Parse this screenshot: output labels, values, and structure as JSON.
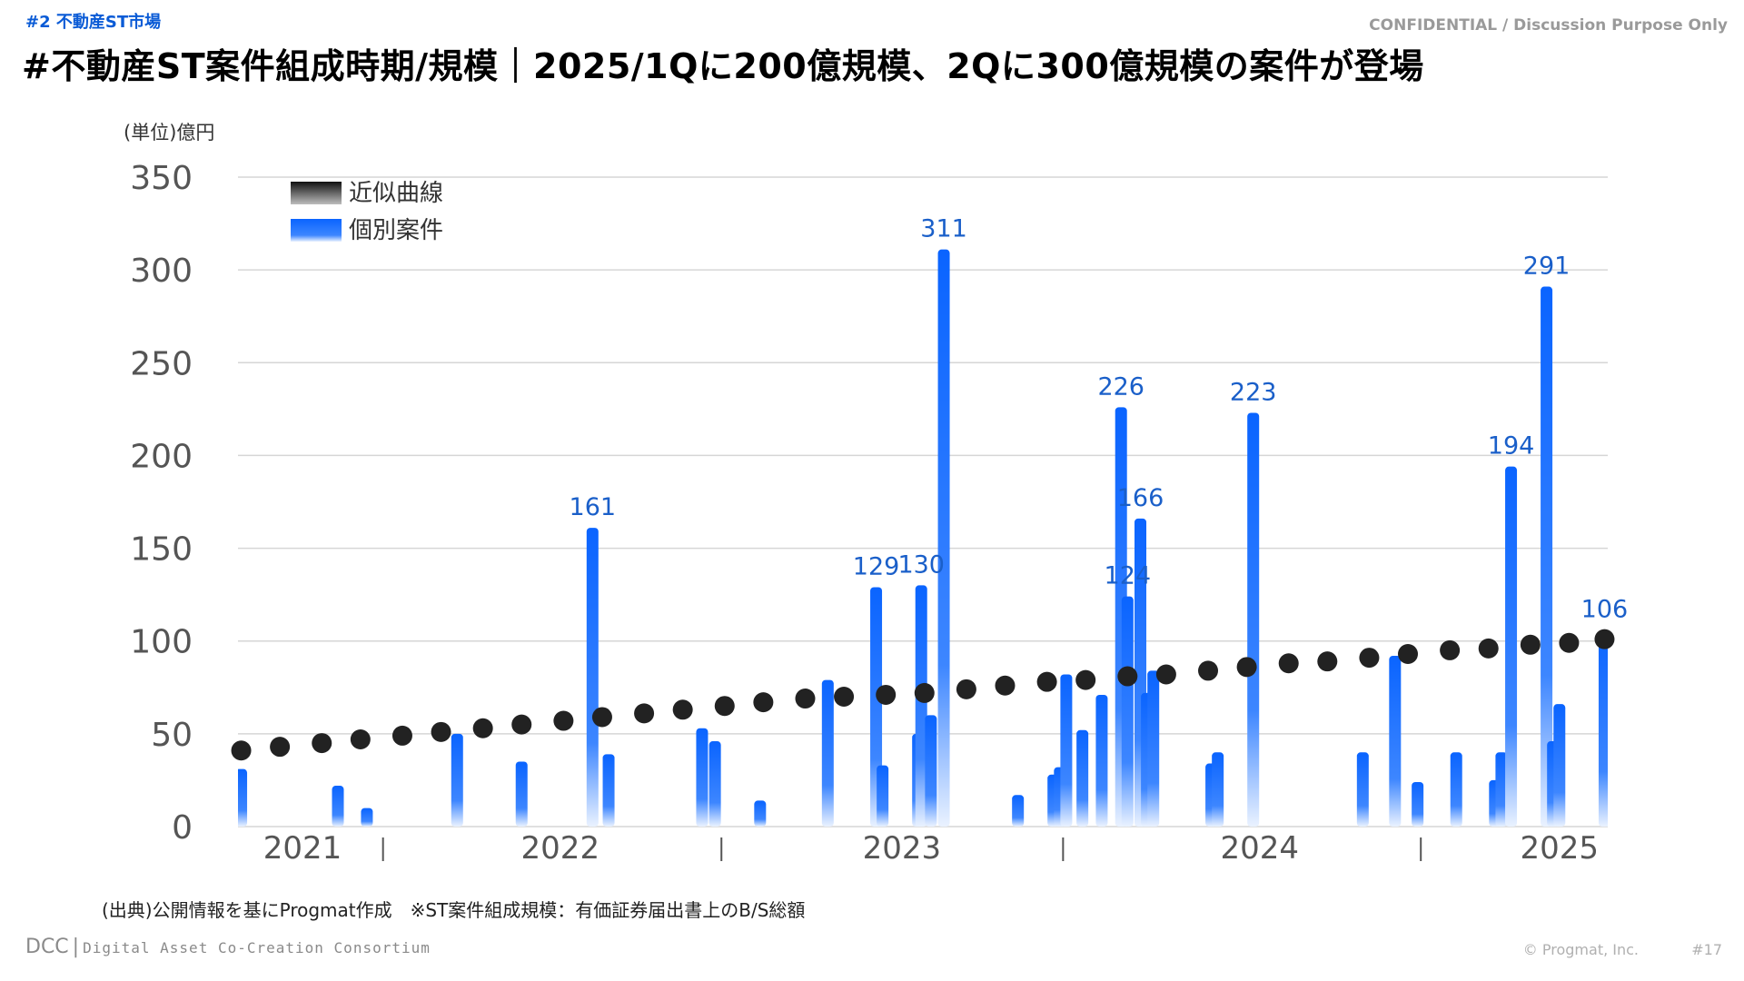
{
  "header": {
    "section_tag": "#2  不動産ST市場",
    "confidential": "CONFIDENTIAL / Discussion Purpose Only",
    "title": "#不動産ST案件組成時期/規模｜2025/1Qに200億規模、2Qに300億規模の案件が登場"
  },
  "footer": {
    "source_note": "(出典)公開情報を基にProgmat作成　※ST案件組成規模：有価証券届出書上のB/S総額",
    "logo_text": "DCC",
    "logo_separator": "|",
    "org_name": "Digital Asset Co-Creation Consortium",
    "copyright": "© Progmat, Inc.",
    "page_number": "#17"
  },
  "colors": {
    "bar": "#0a64ff",
    "bar_fade": "#eaf2ff",
    "dot": "#222222",
    "label": "#1a5fc9",
    "grid": "#d6d6d6",
    "axis_text": "#555555"
  },
  "chart_data": {
    "type": "bar",
    "unit_label": "(単位)億円",
    "ylim": [
      0,
      350
    ],
    "yticks": [
      0,
      50,
      100,
      150,
      200,
      250,
      300,
      350
    ],
    "grid": true,
    "legend_position": "top-left",
    "legend": [
      {
        "name": "近似曲線",
        "style": "dot"
      },
      {
        "name": "個別案件",
        "style": "bar"
      }
    ],
    "x_range": [
      2021.05,
      2025.3
    ],
    "year_labels": [
      {
        "label": "2021",
        "x": 2021.25
      },
      {
        "label": "2022",
        "x": 2022.05
      },
      {
        "label": "2023",
        "x": 2023.11
      },
      {
        "label": "2024",
        "x": 2024.22
      },
      {
        "label": "2025",
        "x": 2025.15
      }
    ],
    "year_separators": [
      2021.5,
      2022.55,
      2023.61,
      2024.72
    ],
    "series": [
      {
        "name": "個別案件",
        "type": "bar",
        "points": [
          {
            "x": 2021.06,
            "y": 31
          },
          {
            "x": 2021.36,
            "y": 22
          },
          {
            "x": 2021.45,
            "y": 10
          },
          {
            "x": 2021.73,
            "y": 50
          },
          {
            "x": 2021.93,
            "y": 35
          },
          {
            "x": 2022.15,
            "y": 161,
            "label": "161"
          },
          {
            "x": 2022.2,
            "y": 39
          },
          {
            "x": 2022.49,
            "y": 53
          },
          {
            "x": 2022.53,
            "y": 46
          },
          {
            "x": 2022.67,
            "y": 14
          },
          {
            "x": 2022.88,
            "y": 79
          },
          {
            "x": 2023.03,
            "y": 129,
            "label": "129"
          },
          {
            "x": 2023.05,
            "y": 33
          },
          {
            "x": 2023.16,
            "y": 50
          },
          {
            "x": 2023.17,
            "y": 130,
            "label": "130"
          },
          {
            "x": 2023.2,
            "y": 60
          },
          {
            "x": 2023.24,
            "y": 311,
            "label": "311"
          },
          {
            "x": 2023.47,
            "y": 17
          },
          {
            "x": 2023.58,
            "y": 28
          },
          {
            "x": 2023.6,
            "y": 32
          },
          {
            "x": 2023.62,
            "y": 82
          },
          {
            "x": 2023.67,
            "y": 52
          },
          {
            "x": 2023.73,
            "y": 71
          },
          {
            "x": 2023.79,
            "y": 226,
            "label": "226"
          },
          {
            "x": 2023.81,
            "y": 124,
            "label": "124"
          },
          {
            "x": 2023.85,
            "y": 166,
            "label": "166"
          },
          {
            "x": 2023.87,
            "y": 72
          },
          {
            "x": 2023.89,
            "y": 84
          },
          {
            "x": 2024.07,
            "y": 34
          },
          {
            "x": 2024.09,
            "y": 40
          },
          {
            "x": 2024.2,
            "y": 223,
            "label": "223"
          },
          {
            "x": 2024.54,
            "y": 40
          },
          {
            "x": 2024.64,
            "y": 92
          },
          {
            "x": 2024.71,
            "y": 24
          },
          {
            "x": 2024.83,
            "y": 40
          },
          {
            "x": 2024.95,
            "y": 25
          },
          {
            "x": 2024.97,
            "y": 40
          },
          {
            "x": 2025.0,
            "y": 194,
            "label": "194"
          },
          {
            "x": 2025.11,
            "y": 291,
            "label": "291"
          },
          {
            "x": 2025.13,
            "y": 46
          },
          {
            "x": 2025.15,
            "y": 66
          },
          {
            "x": 2025.29,
            "y": 106,
            "label": "106"
          }
        ]
      },
      {
        "name": "近似曲線",
        "type": "scatter",
        "points": [
          {
            "x": 2021.06,
            "y": 41
          },
          {
            "x": 2021.18,
            "y": 43
          },
          {
            "x": 2021.31,
            "y": 45
          },
          {
            "x": 2021.43,
            "y": 47
          },
          {
            "x": 2021.56,
            "y": 49
          },
          {
            "x": 2021.68,
            "y": 51
          },
          {
            "x": 2021.81,
            "y": 53
          },
          {
            "x": 2021.93,
            "y": 55
          },
          {
            "x": 2022.06,
            "y": 57
          },
          {
            "x": 2022.18,
            "y": 59
          },
          {
            "x": 2022.31,
            "y": 61
          },
          {
            "x": 2022.43,
            "y": 63
          },
          {
            "x": 2022.56,
            "y": 65
          },
          {
            "x": 2022.68,
            "y": 67
          },
          {
            "x": 2022.81,
            "y": 69
          },
          {
            "x": 2022.93,
            "y": 70
          },
          {
            "x": 2023.06,
            "y": 71
          },
          {
            "x": 2023.18,
            "y": 72
          },
          {
            "x": 2023.31,
            "y": 74
          },
          {
            "x": 2023.43,
            "y": 76
          },
          {
            "x": 2023.56,
            "y": 78
          },
          {
            "x": 2023.68,
            "y": 79
          },
          {
            "x": 2023.81,
            "y": 81
          },
          {
            "x": 2023.93,
            "y": 82
          },
          {
            "x": 2024.06,
            "y": 84
          },
          {
            "x": 2024.18,
            "y": 86
          },
          {
            "x": 2024.31,
            "y": 88
          },
          {
            "x": 2024.43,
            "y": 89
          },
          {
            "x": 2024.56,
            "y": 91
          },
          {
            "x": 2024.68,
            "y": 93
          },
          {
            "x": 2024.81,
            "y": 95
          },
          {
            "x": 2024.93,
            "y": 96
          },
          {
            "x": 2025.06,
            "y": 98
          },
          {
            "x": 2025.18,
            "y": 99
          },
          {
            "x": 2025.29,
            "y": 101
          }
        ]
      }
    ]
  }
}
